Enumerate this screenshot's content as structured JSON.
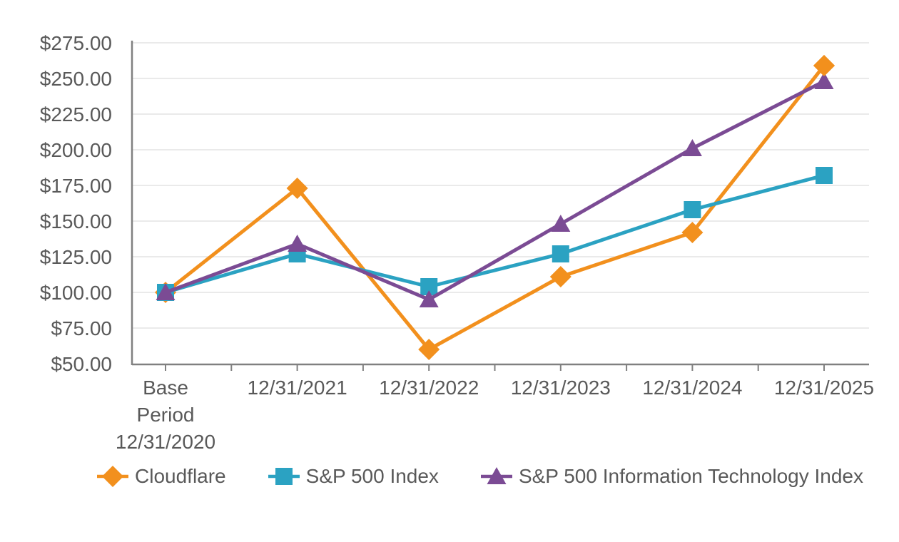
{
  "chart_data": {
    "type": "line",
    "title": "",
    "categories": [
      "Base Period 12/31/2020",
      "12/31/2021",
      "12/31/2022",
      "12/31/2023",
      "12/31/2024",
      "12/31/2025"
    ],
    "x_tick_labels": [
      [
        "Base",
        "Period",
        "12/31/2020"
      ],
      [
        "12/31/2021"
      ],
      [
        "12/31/2022"
      ],
      [
        "12/31/2023"
      ],
      [
        "12/31/2024"
      ],
      [
        "12/31/2025"
      ]
    ],
    "series": [
      {
        "name": "Cloudflare",
        "marker": "diamond",
        "color": "#F2901D",
        "values": [
          100,
          173,
          60,
          111,
          142,
          259
        ]
      },
      {
        "name": "S&P 500 Index",
        "marker": "square",
        "color": "#2BA2C2",
        "values": [
          100,
          127,
          104,
          127,
          158,
          182
        ]
      },
      {
        "name": "S&P 500 Information Technology Index",
        "marker": "triangle",
        "color": "#7B4B94",
        "values": [
          100,
          134,
          95,
          148,
          201,
          248
        ]
      }
    ],
    "y_ticks": [
      {
        "value": 50,
        "label": "$50.00"
      },
      {
        "value": 75,
        "label": "$75.00"
      },
      {
        "value": 100,
        "label": "$100.00"
      },
      {
        "value": 125,
        "label": "$125.00"
      },
      {
        "value": 150,
        "label": "$150.00"
      },
      {
        "value": 175,
        "label": "$175.00"
      },
      {
        "value": 200,
        "label": "$200.00"
      },
      {
        "value": 225,
        "label": "$225.00"
      },
      {
        "value": 250,
        "label": "$250.00"
      },
      {
        "value": 275,
        "label": "$275.00"
      }
    ],
    "ylim": [
      50,
      275
    ],
    "grid": true,
    "legend_position": "bottom",
    "axis_color": "#808080",
    "gridline_color": "#E3E3E3",
    "label_color": "#595959"
  }
}
